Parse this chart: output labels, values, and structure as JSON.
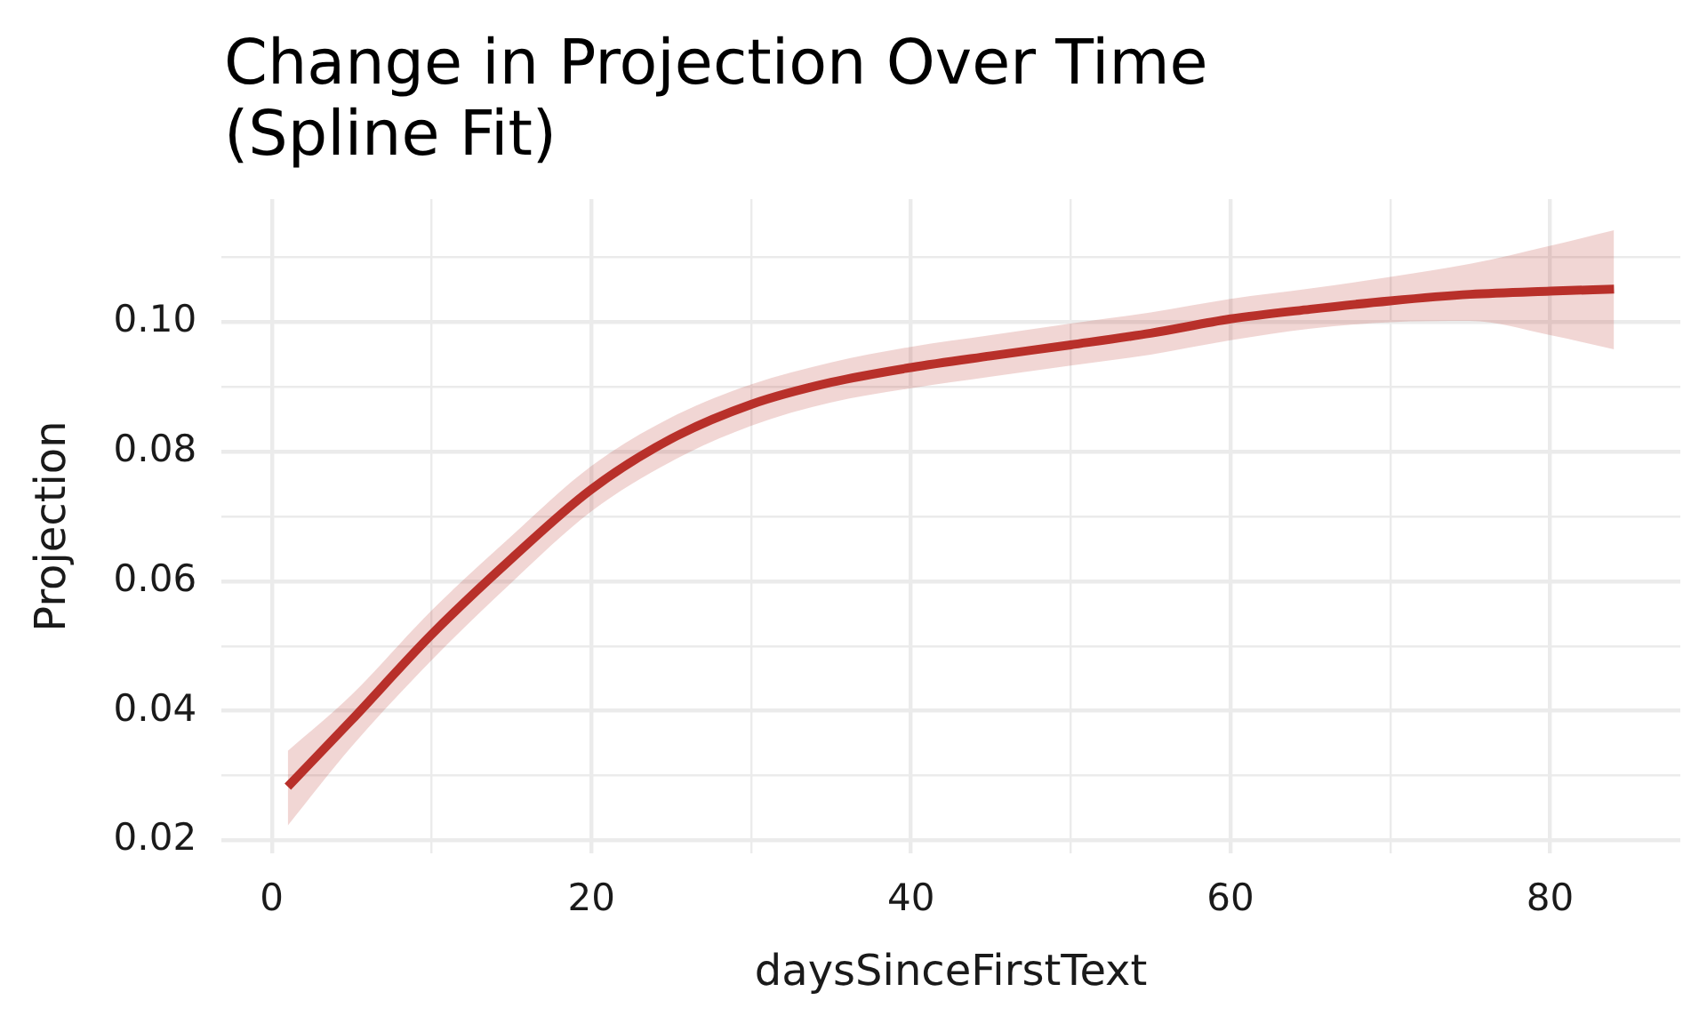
{
  "chart_data": {
    "type": "line",
    "title": "Change in Projection Over Time\n(Spline Fit)",
    "xlabel": "daysSinceFirstText",
    "ylabel": "Projection",
    "x": [
      1,
      5,
      10,
      15,
      20,
      25,
      30,
      35,
      40,
      45,
      50,
      55,
      60,
      65,
      70,
      75,
      80,
      84
    ],
    "series": [
      {
        "color": "#b8302a",
        "values": [
          0.0283,
          0.0386,
          0.0518,
          0.0635,
          0.0742,
          0.082,
          0.0873,
          0.0907,
          0.093,
          0.0948,
          0.0965,
          0.0983,
          0.1005,
          0.102,
          0.1033,
          0.1043,
          0.1048,
          0.1051
        ],
        "lower": [
          0.0223,
          0.0345,
          0.0478,
          0.0598,
          0.0708,
          0.0785,
          0.084,
          0.0876,
          0.0898,
          0.0916,
          0.0933,
          0.095,
          0.0972,
          0.099,
          0.1,
          0.1002,
          0.098,
          0.0958
        ],
        "upper": [
          0.0338,
          0.0425,
          0.0555,
          0.067,
          0.0778,
          0.0853,
          0.0904,
          0.0938,
          0.0962,
          0.098,
          0.0998,
          0.1015,
          0.1036,
          0.1052,
          0.107,
          0.109,
          0.1118,
          0.1142
        ]
      }
    ],
    "xlim": [
      -3.15,
      88.15
    ],
    "xticks": [
      0,
      {
        "value": 10,
        "label": null
      },
      20,
      {
        "value": 30,
        "label": null
      },
      40,
      {
        "value": 50,
        "label": null
      },
      60,
      {
        "value": 70,
        "label": null
      },
      80
    ],
    "ylim": [
      0.018,
      0.119
    ],
    "yticks": [
      0.02,
      {
        "value": 0.03,
        "label": null
      },
      0.04,
      {
        "value": 0.05,
        "label": null
      },
      0.06,
      {
        "value": 0.07,
        "label": null
      },
      0.08,
      {
        "value": 0.09,
        "label": null
      },
      {
        "value": 0.1,
        "label": "0.10"
      },
      {
        "value": 0.11,
        "label": null
      }
    ],
    "grid": true
  }
}
